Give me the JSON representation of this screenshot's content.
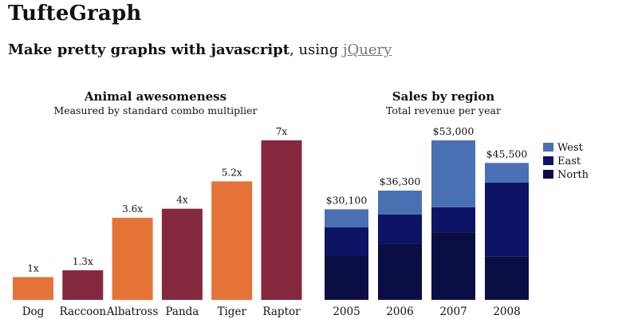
{
  "header": {
    "title": "TufteGraph",
    "tagline_bold": "Make pretty graphs with javascript",
    "tagline_rest": ", using ",
    "tagline_link": "jQuery"
  },
  "colors": {
    "orange": "#e57337",
    "maroon": "#842840",
    "west": "#4a70b4",
    "east": "#0d1466",
    "north": "#0b0e45",
    "link": "#777777"
  },
  "chart_data": [
    {
      "type": "bar",
      "title": "Animal awesomeness",
      "subtitle": "Measured by standard combo multiplier",
      "categories": [
        "Dog",
        "Raccoon",
        "Albatross",
        "Panda",
        "Tiger",
        "Raptor"
      ],
      "values": [
        1,
        1.3,
        3.6,
        4,
        5.2,
        7
      ],
      "labels": [
        "1x",
        "1.3x",
        "3.6x",
        "4x",
        "5.2x",
        "7x"
      ],
      "bar_colors": [
        "#e57337",
        "#842840",
        "#e57337",
        "#842840",
        "#e57337",
        "#842840"
      ],
      "xlabel": "",
      "ylabel": "",
      "ylim": [
        0,
        7
      ],
      "grid": false
    },
    {
      "type": "bar",
      "stacked": true,
      "title": "Sales by region",
      "subtitle": "Total revenue per year",
      "categories": [
        "2005",
        "2006",
        "2007",
        "2008"
      ],
      "totals": [
        30100,
        36300,
        53000,
        45500
      ],
      "total_labels": [
        "$30,100",
        "$36,300",
        "$53,000",
        "$45,500"
      ],
      "series": [
        {
          "name": "North",
          "color": "#0b0e45",
          "values": [
            14700,
            18700,
            22500,
            14500
          ]
        },
        {
          "name": "East",
          "color": "#0d1466",
          "values": [
            9400,
            9700,
            8300,
            24500
          ]
        },
        {
          "name": "West",
          "color": "#4a70b4",
          "values": [
            6000,
            7900,
            22200,
            6500
          ]
        }
      ],
      "legend": {
        "position": "right",
        "order": [
          "West",
          "East",
          "North"
        ]
      },
      "xlabel": "",
      "ylabel": "",
      "ylim": [
        0,
        53000
      ],
      "grid": false
    }
  ]
}
